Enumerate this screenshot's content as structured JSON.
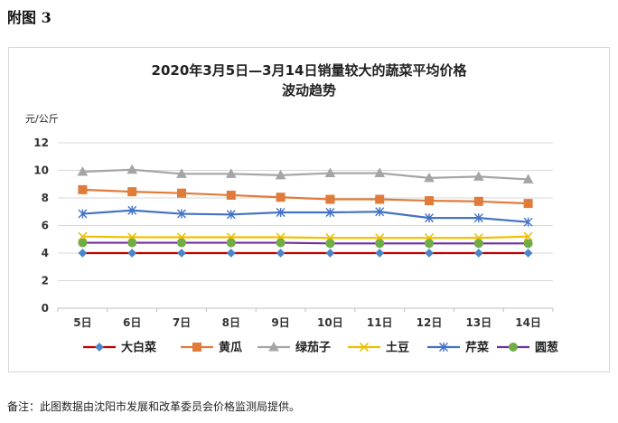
{
  "figure_label": "附图 3",
  "note": "备注：此图数据由沈阳市发展和改革委员会价格监测局提供。",
  "chart_data": {
    "type": "line",
    "title_line1": "2020年3月5日—3月14日销量较大的蔬菜平均价格",
    "title_line2": "波动趋势",
    "ylabel": "元/公斤",
    "xlabel": "",
    "ylim": [
      0,
      12
    ],
    "yticks": [
      "0",
      "2",
      "4",
      "6",
      "8",
      "10",
      "12"
    ],
    "categories": [
      "5日",
      "6日",
      "7日",
      "8日",
      "9日",
      "10日",
      "11日",
      "12日",
      "13日",
      "14日"
    ],
    "grid": true,
    "legend_position": "bottom",
    "series": [
      {
        "name": "大白菜",
        "color": "#c00000",
        "marker": "diamond",
        "marker_color": "#4a86c8",
        "values": [
          4.0,
          4.0,
          4.0,
          4.0,
          4.0,
          4.0,
          4.0,
          4.0,
          4.0,
          4.0
        ]
      },
      {
        "name": "黄瓜",
        "color": "#e07b39",
        "marker": "square",
        "marker_color": "#e07b39",
        "values": [
          8.6,
          8.45,
          8.35,
          8.2,
          8.05,
          7.9,
          7.9,
          7.8,
          7.75,
          7.6
        ]
      },
      {
        "name": "绿茄子",
        "color": "#a5a5a5",
        "marker": "triangle",
        "marker_color": "#a5a5a5",
        "values": [
          9.9,
          10.05,
          9.75,
          9.75,
          9.65,
          9.8,
          9.8,
          9.45,
          9.55,
          9.35
        ]
      },
      {
        "name": "土豆",
        "color": "#f0c000",
        "marker": "x",
        "marker_color": "#f0c000",
        "values": [
          5.2,
          5.15,
          5.15,
          5.15,
          5.15,
          5.1,
          5.1,
          5.1,
          5.1,
          5.2
        ]
      },
      {
        "name": "芹菜",
        "color": "#4472c4",
        "marker": "star",
        "marker_color": "#4472c4",
        "values": [
          6.85,
          7.1,
          6.85,
          6.8,
          6.95,
          6.95,
          7.0,
          6.55,
          6.55,
          6.25
        ]
      },
      {
        "name": "圆葱",
        "color": "#7030a0",
        "marker": "circle",
        "marker_color": "#70ad47",
        "values": [
          4.75,
          4.75,
          4.75,
          4.75,
          4.75,
          4.7,
          4.7,
          4.7,
          4.7,
          4.7
        ]
      }
    ]
  }
}
